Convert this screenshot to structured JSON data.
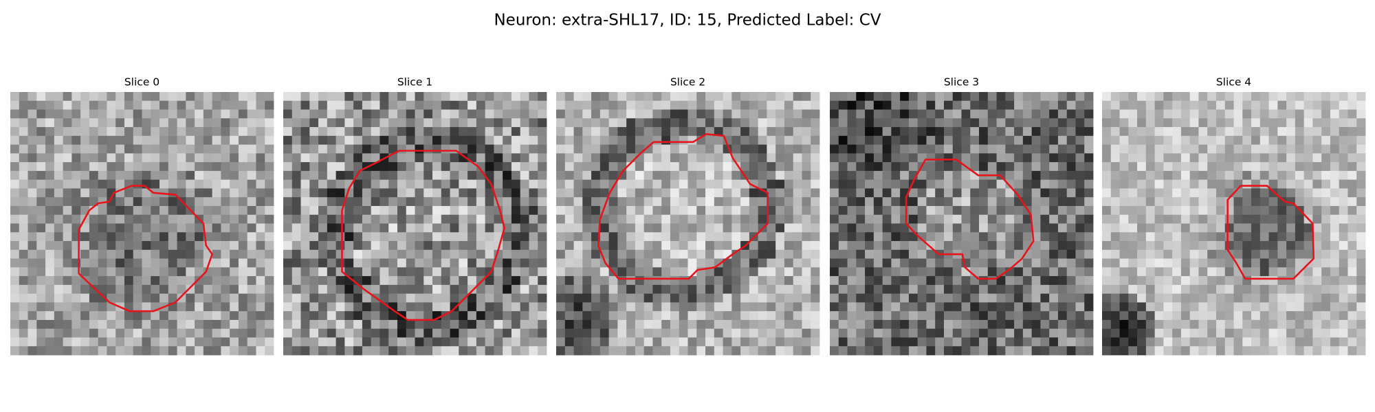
{
  "title": "Neuron: extra-SHL17, ID: 15, Predicted Label: CV",
  "panels": [
    {
      "title": "Slice 0"
    },
    {
      "title": "Slice 1"
    },
    {
      "title": "Slice 2"
    },
    {
      "title": "Slice 3"
    },
    {
      "title": "Slice 4"
    }
  ]
}
